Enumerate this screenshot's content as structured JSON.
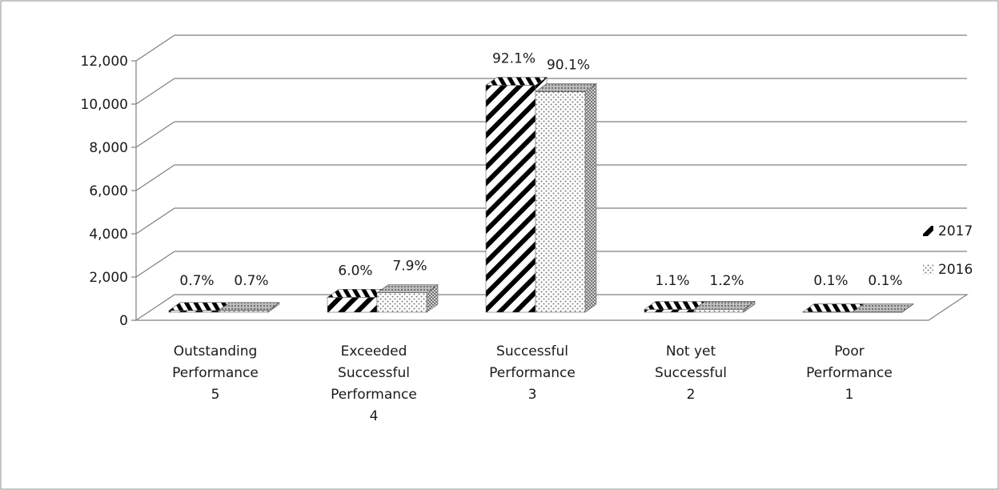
{
  "chart_data": {
    "type": "bar",
    "title": "",
    "xlabel": "",
    "ylabel": "",
    "ylim": [
      0,
      12000
    ],
    "yticks": [
      0,
      2000,
      4000,
      6000,
      8000,
      10000,
      12000
    ],
    "ytick_labels": [
      "0",
      "2,000",
      "4,000",
      "6,000",
      "8,000",
      "10,000",
      "12,000"
    ],
    "grid": true,
    "legend_position": "right",
    "categories": [
      {
        "lines": [
          "Outstanding",
          "Performance",
          "5"
        ]
      },
      {
        "lines": [
          "Exceeded",
          "Successful",
          "Performance",
          "4"
        ]
      },
      {
        "lines": [
          "Successful",
          "Performance",
          "3"
        ]
      },
      {
        "lines": [
          "Not yet",
          "Successful",
          "2"
        ]
      },
      {
        "lines": [
          "Poor",
          "Performance",
          "1"
        ]
      }
    ],
    "series": [
      {
        "name": "2017",
        "pattern": "diagonal-stripes",
        "values": [
          80,
          690,
          10500,
          130,
          15
        ],
        "labels": [
          "0.7%",
          "6.0%",
          "92.1%",
          "1.1%",
          "0.1%"
        ]
      },
      {
        "name": "2016",
        "pattern": "dots",
        "values": [
          80,
          900,
          10200,
          135,
          12
        ],
        "labels": [
          "0.7%",
          "7.9%",
          "90.1%",
          "1.2%",
          "0.1%"
        ]
      }
    ]
  }
}
